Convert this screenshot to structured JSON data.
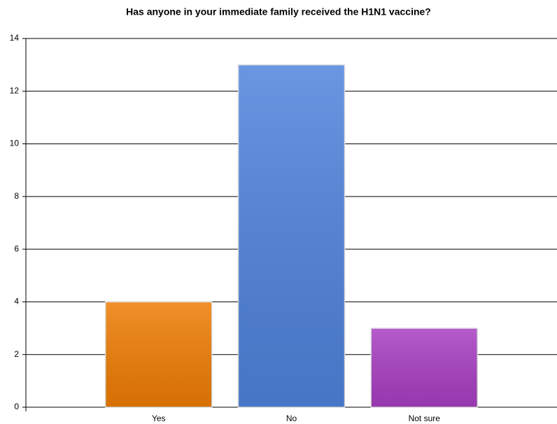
{
  "chart_data": {
    "type": "bar",
    "title": "Has anyone in your immediate family received the H1N1 vaccine?",
    "categories": [
      "Yes",
      "No",
      "Not sure"
    ],
    "values": [
      4,
      13,
      3
    ],
    "colors": [
      "#ef7d05",
      "#4f83dc",
      "#a83fc2"
    ],
    "ylim": [
      0,
      14
    ],
    "yticks": [
      0,
      2,
      4,
      6,
      8,
      10,
      12,
      14
    ],
    "grid": true
  }
}
